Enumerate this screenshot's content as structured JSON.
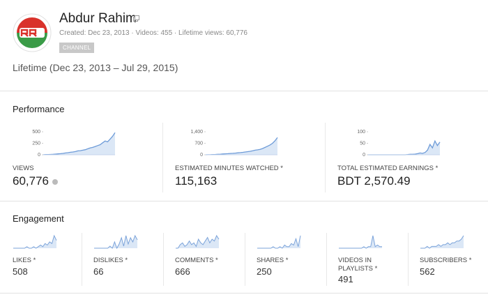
{
  "header": {
    "name": "Abdur Rahim",
    "meta": "Created: Dec 23, 2013 · Videos: 455 · Lifetime views: 60,776",
    "badge": "CHANNEL",
    "range": "Lifetime (Dec 23, 2013 – Jul 29, 2015)"
  },
  "performance": {
    "title": "Performance",
    "cards": [
      {
        "label": "VIEWS",
        "value": "60,776",
        "chart": {
          "type": "line",
          "color": "#6d9bd8",
          "ylim": [
            0,
            500
          ],
          "yticks": [
            0,
            250,
            500
          ],
          "values": [
            2,
            4,
            5,
            8,
            10,
            15,
            20,
            25,
            30,
            40,
            45,
            55,
            60,
            70,
            85,
            90,
            100,
            110,
            130,
            150,
            160,
            180,
            200,
            220,
            260,
            300,
            280,
            340,
            400,
            480
          ]
        }
      },
      {
        "label": "ESTIMATED MINUTES WATCHED *",
        "value": "115,163",
        "chart": {
          "type": "line",
          "color": "#6d9bd8",
          "ylim": [
            0,
            1400
          ],
          "yticks": [
            0,
            700,
            {
              "value": 1400,
              "label": "1,400"
            }
          ],
          "values": [
            0,
            5,
            10,
            15,
            20,
            30,
            40,
            50,
            60,
            70,
            80,
            90,
            100,
            120,
            130,
            150,
            170,
            190,
            210,
            240,
            280,
            300,
            330,
            380,
            450,
            520,
            600,
            700,
            850,
            1050
          ]
        }
      },
      {
        "label": "TOTAL ESTIMATED EARNINGS *",
        "value": "BDT 2,570.49",
        "chart": {
          "type": "line",
          "color": "#6d9bd8",
          "ylim": [
            0,
            100
          ],
          "yticks": [
            0,
            50,
            100
          ],
          "values": [
            0,
            0,
            0,
            0,
            0,
            0,
            0,
            0,
            0,
            0,
            0,
            0,
            0,
            0,
            0,
            0,
            1,
            2,
            2,
            3,
            5,
            8,
            6,
            10,
            20,
            45,
            30,
            60,
            40,
            55
          ]
        }
      }
    ]
  },
  "engagement": {
    "title": "Engagement",
    "cards": [
      {
        "label": "LIKES *",
        "value": "508",
        "spark": [
          0,
          0,
          0,
          0,
          0,
          0,
          1,
          0,
          0,
          1,
          0,
          1,
          2,
          1,
          3,
          2,
          4,
          3,
          8,
          5
        ]
      },
      {
        "label": "DISLIKES *",
        "value": "66",
        "spark": [
          0,
          0,
          0,
          0,
          0,
          0,
          0,
          1,
          0,
          3,
          0,
          2,
          5,
          1,
          6,
          2,
          5,
          3,
          6,
          4
        ]
      },
      {
        "label": "COMMENTS *",
        "value": "666",
        "spark": [
          0,
          0,
          2,
          3,
          1,
          2,
          4,
          2,
          3,
          1,
          5,
          3,
          2,
          4,
          6,
          3,
          5,
          4,
          7,
          5
        ]
      },
      {
        "label": "SHARES *",
        "value": "250",
        "spark": [
          0,
          0,
          0,
          0,
          0,
          0,
          0,
          1,
          0,
          0,
          1,
          0,
          2,
          1,
          1,
          3,
          2,
          6,
          1,
          8
        ]
      },
      {
        "label": "VIDEOS IN PLAYLISTS *",
        "value": "491",
        "spark": [
          0,
          0,
          0,
          0,
          0,
          0,
          0,
          0,
          0,
          0,
          0,
          1,
          0,
          1,
          1,
          8,
          1,
          2,
          1,
          1
        ]
      },
      {
        "label": "SUBSCRIBERS *",
        "value": "562",
        "spark": [
          0,
          0,
          0,
          1,
          0,
          1,
          1,
          1,
          2,
          1,
          2,
          2,
          3,
          2,
          3,
          3,
          4,
          4,
          5,
          7
        ]
      }
    ]
  }
}
